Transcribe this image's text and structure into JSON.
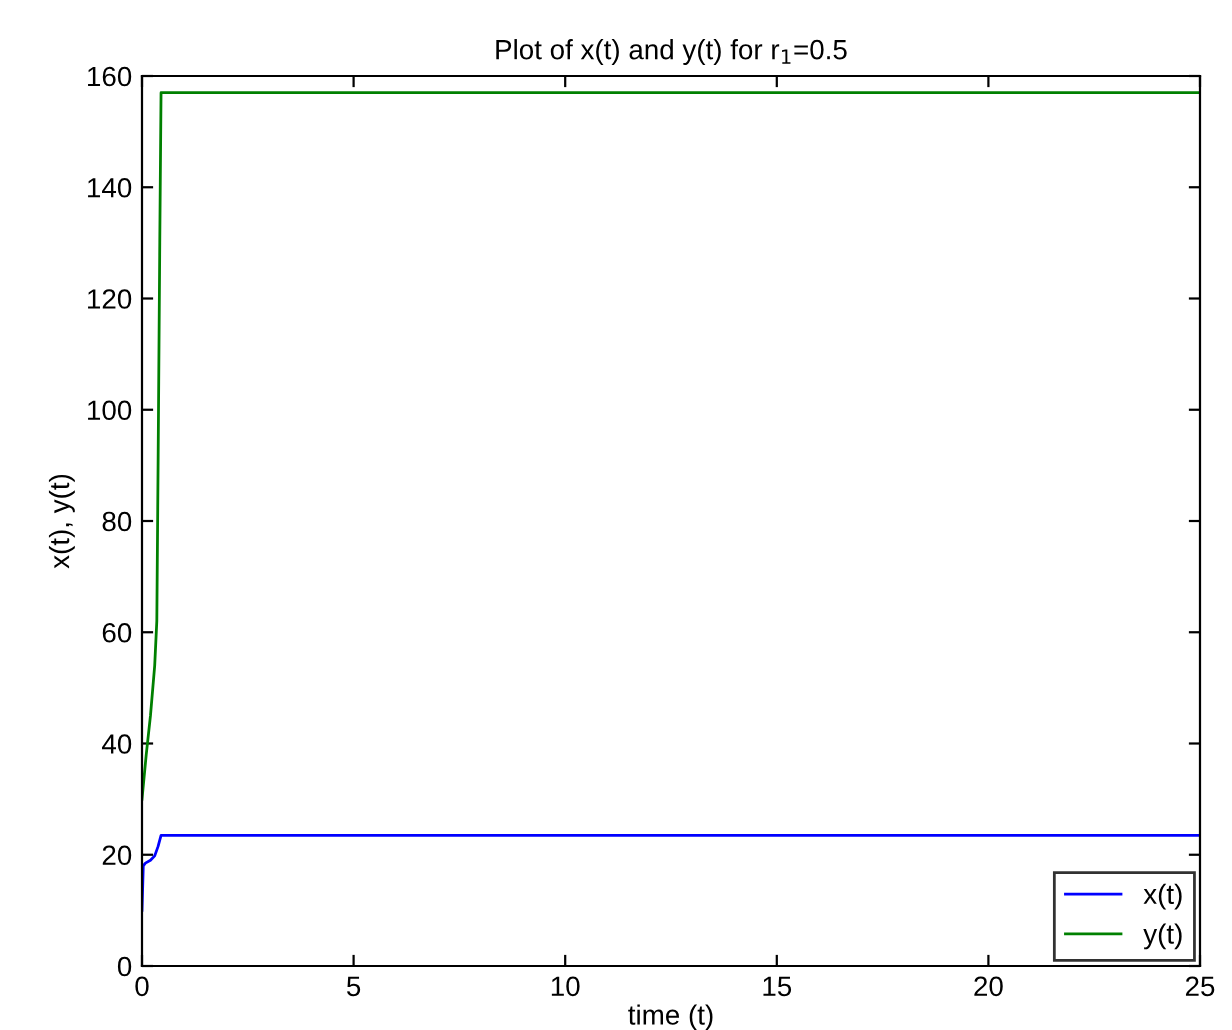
{
  "chart_data": {
    "type": "line",
    "title": "Plot of x(t) and y(t) for r$_{1}$=0.5",
    "xlabel": "time (t)",
    "ylabel": "x(t), y(t)",
    "xlim": [
      0,
      25
    ],
    "ylim": [
      0,
      160
    ],
    "xticks": [
      0,
      5,
      10,
      15,
      20,
      25
    ],
    "yticks": [
      0,
      20,
      40,
      60,
      80,
      100,
      120,
      140,
      160
    ],
    "grid": false,
    "legend": "bottom right",
    "series": [
      {
        "name": "x(t)",
        "color": "#0000ff",
        "x": [
          0,
          0.03,
          0.08,
          0.2,
          0.3,
          0.38,
          0.45,
          0.6,
          25
        ],
        "values": [
          10,
          18,
          18.5,
          19,
          19.8,
          21.5,
          23.5,
          23.5,
          23.5
        ]
      },
      {
        "name": "y(t)",
        "color": "#008000",
        "x": [
          0,
          0.1,
          0.2,
          0.3,
          0.35,
          0.38,
          0.42,
          0.45,
          0.6,
          25
        ],
        "values": [
          30,
          38,
          45,
          54,
          62,
          90,
          130,
          157,
          157,
          157
        ]
      }
    ]
  }
}
